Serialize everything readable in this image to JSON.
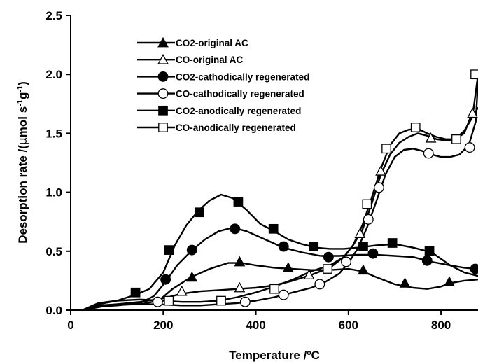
{
  "chart_data": {
    "type": "line",
    "xlabel": "Temperature /ºC",
    "ylabel_prefix": "Desorption rate /(",
    "ylabel_mu": "μ",
    "ylabel_mid": "mol s",
    "ylabel_exp1": "-1",
    "ylabel_g": "g",
    "ylabel_exp2": "-1",
    "ylabel_suffix": ")",
    "xlim": [
      0,
      880
    ],
    "ylim": [
      0,
      2.5
    ],
    "xticks": [
      0,
      200,
      400,
      600,
      800
    ],
    "yticks": [
      0.0,
      0.5,
      1.0,
      1.5,
      2.0,
      2.5
    ],
    "ytick_labels": [
      "0.0",
      "0.5",
      "1.0",
      "1.5",
      "2.0",
      "2.5"
    ],
    "legend_position": "top-left",
    "grid": false,
    "series": [
      {
        "name": "CO2-original AC",
        "marker": "triangle",
        "filled": true,
        "line": [
          [
            25,
            0
          ],
          [
            60,
            0.04
          ],
          [
            100,
            0.05
          ],
          [
            150,
            0.05
          ],
          [
            190,
            0.08
          ],
          [
            220,
            0.18
          ],
          [
            260,
            0.28
          ],
          [
            300,
            0.35
          ],
          [
            340,
            0.4
          ],
          [
            370,
            0.4
          ],
          [
            400,
            0.38
          ],
          [
            440,
            0.36
          ],
          [
            480,
            0.35
          ],
          [
            520,
            0.34
          ],
          [
            560,
            0.34
          ],
          [
            600,
            0.35
          ],
          [
            630,
            0.33
          ],
          [
            660,
            0.28
          ],
          [
            700,
            0.22
          ],
          [
            740,
            0.19
          ],
          [
            770,
            0.18
          ],
          [
            800,
            0.2
          ],
          [
            820,
            0.23
          ],
          [
            850,
            0.25
          ],
          [
            880,
            0.26
          ]
        ],
        "markers": [
          [
            262,
            0.28
          ],
          [
            365,
            0.41
          ],
          [
            470,
            0.36
          ],
          [
            632,
            0.34
          ],
          [
            722,
            0.23
          ],
          [
            818,
            0.24
          ]
        ]
      },
      {
        "name": "CO-original AC",
        "marker": "triangle",
        "filled": false,
        "line": [
          [
            25,
            0
          ],
          [
            60,
            0.03
          ],
          [
            100,
            0.05
          ],
          [
            150,
            0.07
          ],
          [
            200,
            0.1
          ],
          [
            240,
            0.14
          ],
          [
            280,
            0.16
          ],
          [
            320,
            0.17
          ],
          [
            360,
            0.18
          ],
          [
            400,
            0.19
          ],
          [
            440,
            0.21
          ],
          [
            480,
            0.25
          ],
          [
            520,
            0.3
          ],
          [
            560,
            0.36
          ],
          [
            590,
            0.45
          ],
          [
            610,
            0.55
          ],
          [
            630,
            0.68
          ],
          [
            650,
            0.9
          ],
          [
            670,
            1.15
          ],
          [
            690,
            1.32
          ],
          [
            710,
            1.42
          ],
          [
            730,
            1.47
          ],
          [
            750,
            1.5
          ],
          [
            770,
            1.48
          ],
          [
            790,
            1.45
          ],
          [
            810,
            1.44
          ],
          [
            830,
            1.45
          ],
          [
            850,
            1.52
          ],
          [
            870,
            1.65
          ],
          [
            880,
            1.72
          ]
        ],
        "markers": [
          [
            240,
            0.16
          ],
          [
            365,
            0.19
          ],
          [
            515,
            0.3
          ],
          [
            625,
            0.65
          ],
          [
            670,
            1.18
          ],
          [
            778,
            1.46
          ],
          [
            868,
            1.67
          ]
        ]
      },
      {
        "name": "CO2-cathodically regenerated",
        "marker": "circle",
        "filled": true,
        "line": [
          [
            25,
            0
          ],
          [
            60,
            0.03
          ],
          [
            100,
            0.04
          ],
          [
            150,
            0.06
          ],
          [
            180,
            0.12
          ],
          [
            205,
            0.24
          ],
          [
            230,
            0.38
          ],
          [
            260,
            0.5
          ],
          [
            290,
            0.6
          ],
          [
            320,
            0.67
          ],
          [
            350,
            0.7
          ],
          [
            380,
            0.67
          ],
          [
            420,
            0.6
          ],
          [
            460,
            0.53
          ],
          [
            500,
            0.49
          ],
          [
            540,
            0.46
          ],
          [
            580,
            0.46
          ],
          [
            620,
            0.47
          ],
          [
            660,
            0.47
          ],
          [
            700,
            0.46
          ],
          [
            740,
            0.45
          ],
          [
            780,
            0.41
          ],
          [
            820,
            0.38
          ],
          [
            850,
            0.36
          ],
          [
            880,
            0.35
          ]
        ],
        "markers": [
          [
            205,
            0.26
          ],
          [
            262,
            0.51
          ],
          [
            355,
            0.69
          ],
          [
            460,
            0.54
          ],
          [
            557,
            0.45
          ],
          [
            653,
            0.48
          ],
          [
            770,
            0.42
          ],
          [
            880,
            0.35
          ]
        ]
      },
      {
        "name": "CO-cathodically regenerated",
        "marker": "circle",
        "filled": false,
        "line": [
          [
            25,
            0
          ],
          [
            80,
            0.04
          ],
          [
            140,
            0.05
          ],
          [
            190,
            0.05
          ],
          [
            240,
            0.04
          ],
          [
            280,
            0.04
          ],
          [
            320,
            0.05
          ],
          [
            360,
            0.06
          ],
          [
            400,
            0.08
          ],
          [
            440,
            0.11
          ],
          [
            480,
            0.15
          ],
          [
            520,
            0.19
          ],
          [
            550,
            0.24
          ],
          [
            580,
            0.31
          ],
          [
            600,
            0.4
          ],
          [
            620,
            0.52
          ],
          [
            640,
            0.7
          ],
          [
            660,
            0.92
          ],
          [
            680,
            1.15
          ],
          [
            700,
            1.3
          ],
          [
            720,
            1.36
          ],
          [
            740,
            1.37
          ],
          [
            760,
            1.35
          ],
          [
            780,
            1.32
          ],
          [
            800,
            1.3
          ],
          [
            820,
            1.3
          ],
          [
            840,
            1.32
          ],
          [
            860,
            1.4
          ],
          [
            875,
            1.6
          ],
          [
            880,
            1.95
          ]
        ],
        "markers": [
          [
            188,
            0.07
          ],
          [
            377,
            0.07
          ],
          [
            460,
            0.13
          ],
          [
            538,
            0.22
          ],
          [
            595,
            0.41
          ],
          [
            643,
            0.77
          ],
          [
            666,
            1.04
          ],
          [
            773,
            1.33
          ],
          [
            862,
            1.38
          ]
        ]
      },
      {
        "name": "CO2-anodically regenerated",
        "marker": "square",
        "filled": true,
        "line": [
          [
            25,
            0
          ],
          [
            60,
            0.06
          ],
          [
            100,
            0.08
          ],
          [
            140,
            0.13
          ],
          [
            170,
            0.18
          ],
          [
            200,
            0.32
          ],
          [
            225,
            0.55
          ],
          [
            250,
            0.72
          ],
          [
            275,
            0.84
          ],
          [
            300,
            0.93
          ],
          [
            325,
            0.98
          ],
          [
            350,
            0.95
          ],
          [
            380,
            0.85
          ],
          [
            410,
            0.73
          ],
          [
            440,
            0.67
          ],
          [
            470,
            0.6
          ],
          [
            500,
            0.56
          ],
          [
            530,
            0.53
          ],
          [
            560,
            0.52
          ],
          [
            590,
            0.52
          ],
          [
            620,
            0.53
          ],
          [
            660,
            0.55
          ],
          [
            700,
            0.56
          ],
          [
            740,
            0.53
          ],
          [
            780,
            0.49
          ],
          [
            820,
            0.38
          ],
          [
            850,
            0.32
          ],
          [
            880,
            0.29
          ]
        ],
        "markers": [
          [
            140,
            0.15
          ],
          [
            212,
            0.51
          ],
          [
            278,
            0.83
          ],
          [
            362,
            0.92
          ],
          [
            438,
            0.69
          ],
          [
            525,
            0.54
          ],
          [
            632,
            0.54
          ],
          [
            695,
            0.57
          ],
          [
            775,
            0.5
          ]
        ]
      },
      {
        "name": "CO-anodically regenerated",
        "marker": "square",
        "filled": false,
        "line": [
          [
            25,
            0
          ],
          [
            60,
            0.05
          ],
          [
            100,
            0.08
          ],
          [
            150,
            0.09
          ],
          [
            200,
            0.08
          ],
          [
            240,
            0.07
          ],
          [
            280,
            0.07
          ],
          [
            320,
            0.08
          ],
          [
            360,
            0.11
          ],
          [
            400,
            0.15
          ],
          [
            440,
            0.2
          ],
          [
            480,
            0.26
          ],
          [
            520,
            0.33
          ],
          [
            560,
            0.38
          ],
          [
            590,
            0.45
          ],
          [
            610,
            0.55
          ],
          [
            630,
            0.72
          ],
          [
            650,
            0.95
          ],
          [
            670,
            1.2
          ],
          [
            690,
            1.4
          ],
          [
            710,
            1.5
          ],
          [
            730,
            1.53
          ],
          [
            750,
            1.54
          ],
          [
            770,
            1.5
          ],
          [
            790,
            1.47
          ],
          [
            810,
            1.45
          ],
          [
            830,
            1.45
          ],
          [
            850,
            1.5
          ],
          [
            870,
            1.7
          ],
          [
            880,
            2.0
          ]
        ],
        "markers": [
          [
            212,
            0.08
          ],
          [
            325,
            0.08
          ],
          [
            440,
            0.18
          ],
          [
            555,
            0.35
          ],
          [
            640,
            0.9
          ],
          [
            682,
            1.37
          ],
          [
            745,
            1.55
          ],
          [
            833,
            1.45
          ],
          [
            880,
            2.0
          ]
        ]
      }
    ]
  }
}
